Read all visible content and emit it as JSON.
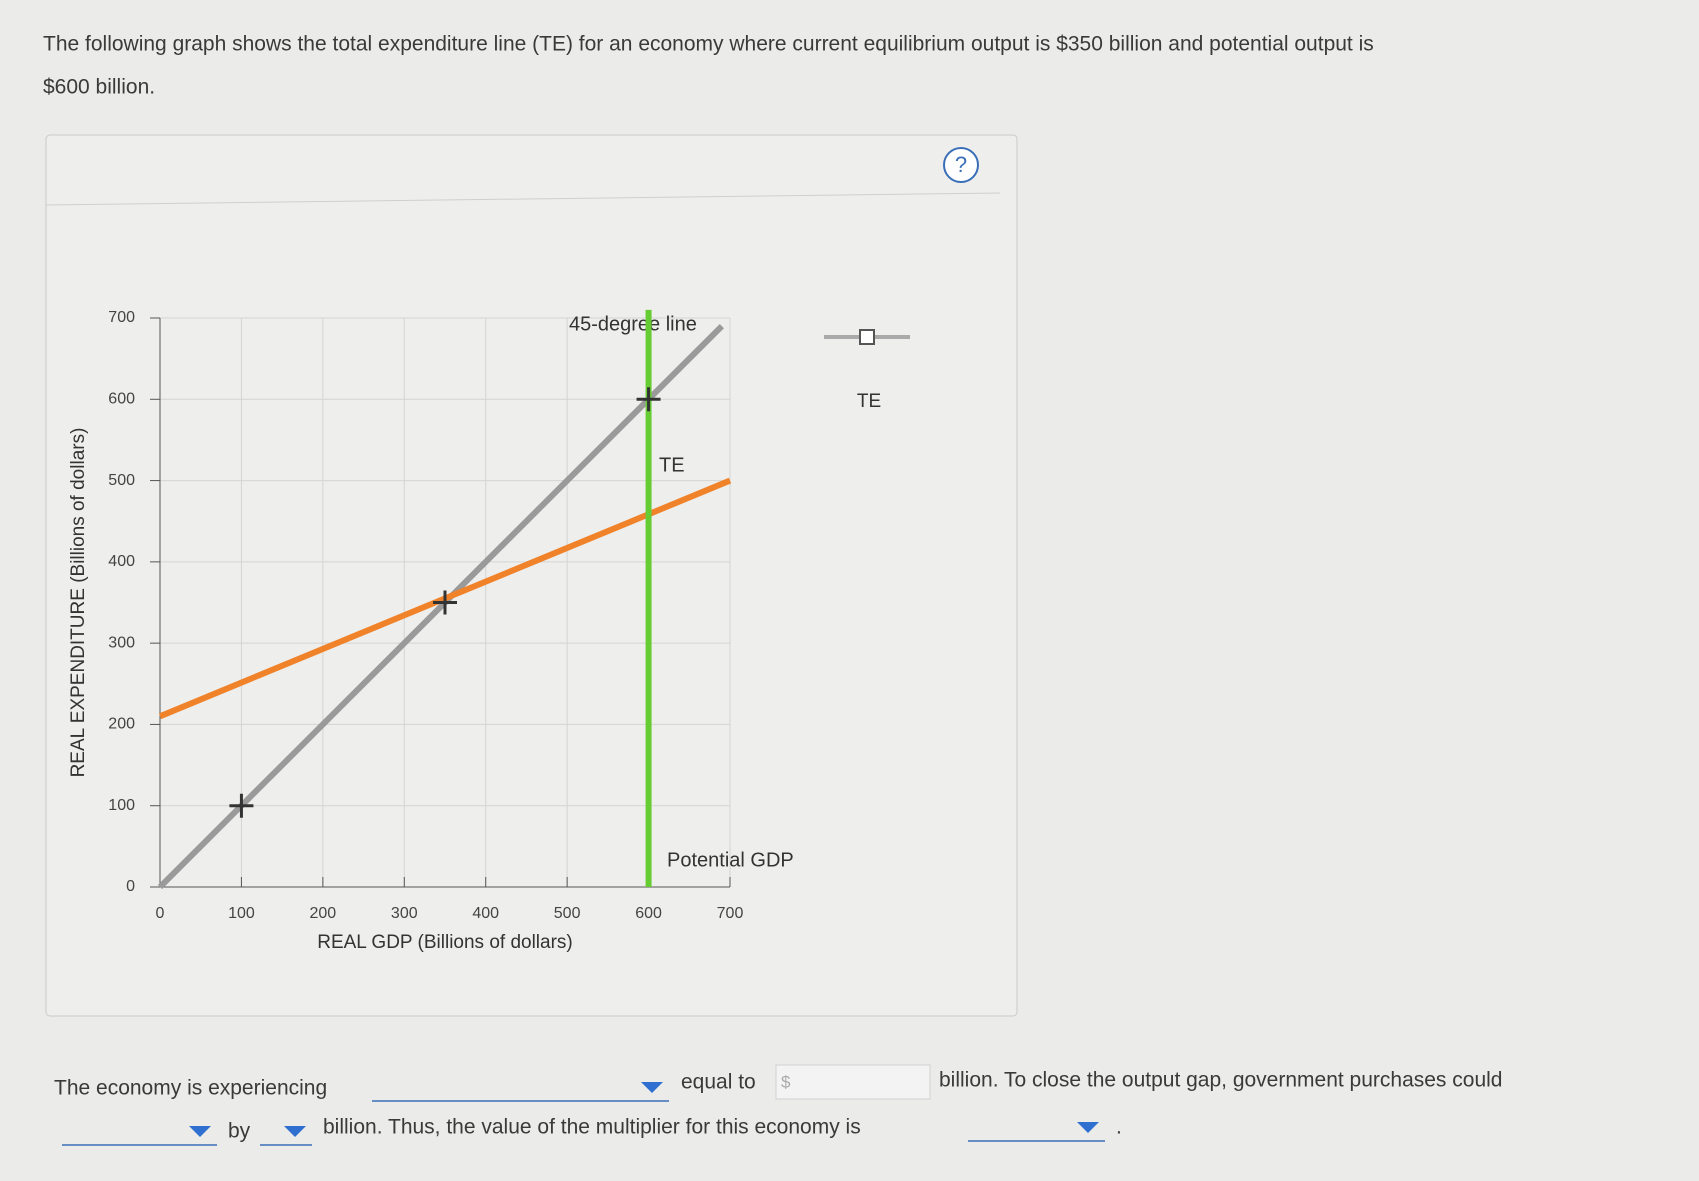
{
  "prompt": {
    "line1": "The following graph shows the total expenditure line (TE) for an economy where current equilibrium output is $350 billion and potential output is",
    "line2": "$600 billion."
  },
  "chart_data": {
    "type": "line",
    "xlabel": "REAL GDP (Billions of dollars)",
    "ylabel": "REAL EXPENDITURE (Billions of dollars)",
    "xlim": [
      0,
      700
    ],
    "ylim": [
      0,
      700
    ],
    "xticks": [
      0,
      100,
      200,
      300,
      400,
      500,
      600,
      700
    ],
    "yticks": [
      0,
      100,
      200,
      300,
      400,
      500,
      600,
      700
    ],
    "grid": true,
    "series": [
      {
        "name": "45-degree line",
        "color": "#9a9a9a",
        "x": [
          0,
          690
        ],
        "values": [
          0,
          690
        ]
      },
      {
        "name": "TE",
        "color": "#f0822a",
        "x": [
          0,
          700
        ],
        "values": [
          210,
          500
        ]
      },
      {
        "name": "Potential GDP",
        "color": "#66cc33",
        "x": [
          600,
          600
        ],
        "values": [
          0,
          710
        ]
      }
    ],
    "markers": {
      "x": [
        100,
        350,
        600
      ],
      "values": [
        100,
        350,
        600
      ]
    },
    "palette": {
      "label": "TE"
    }
  },
  "question": {
    "part1": "The economy is experiencing",
    "part2": "equal to",
    "currency": "$",
    "part3": "billion. To close the output gap, government purchases could",
    "part4": "by",
    "part5": "billion. Thus, the value of the multiplier for this economy is",
    "period": "."
  }
}
